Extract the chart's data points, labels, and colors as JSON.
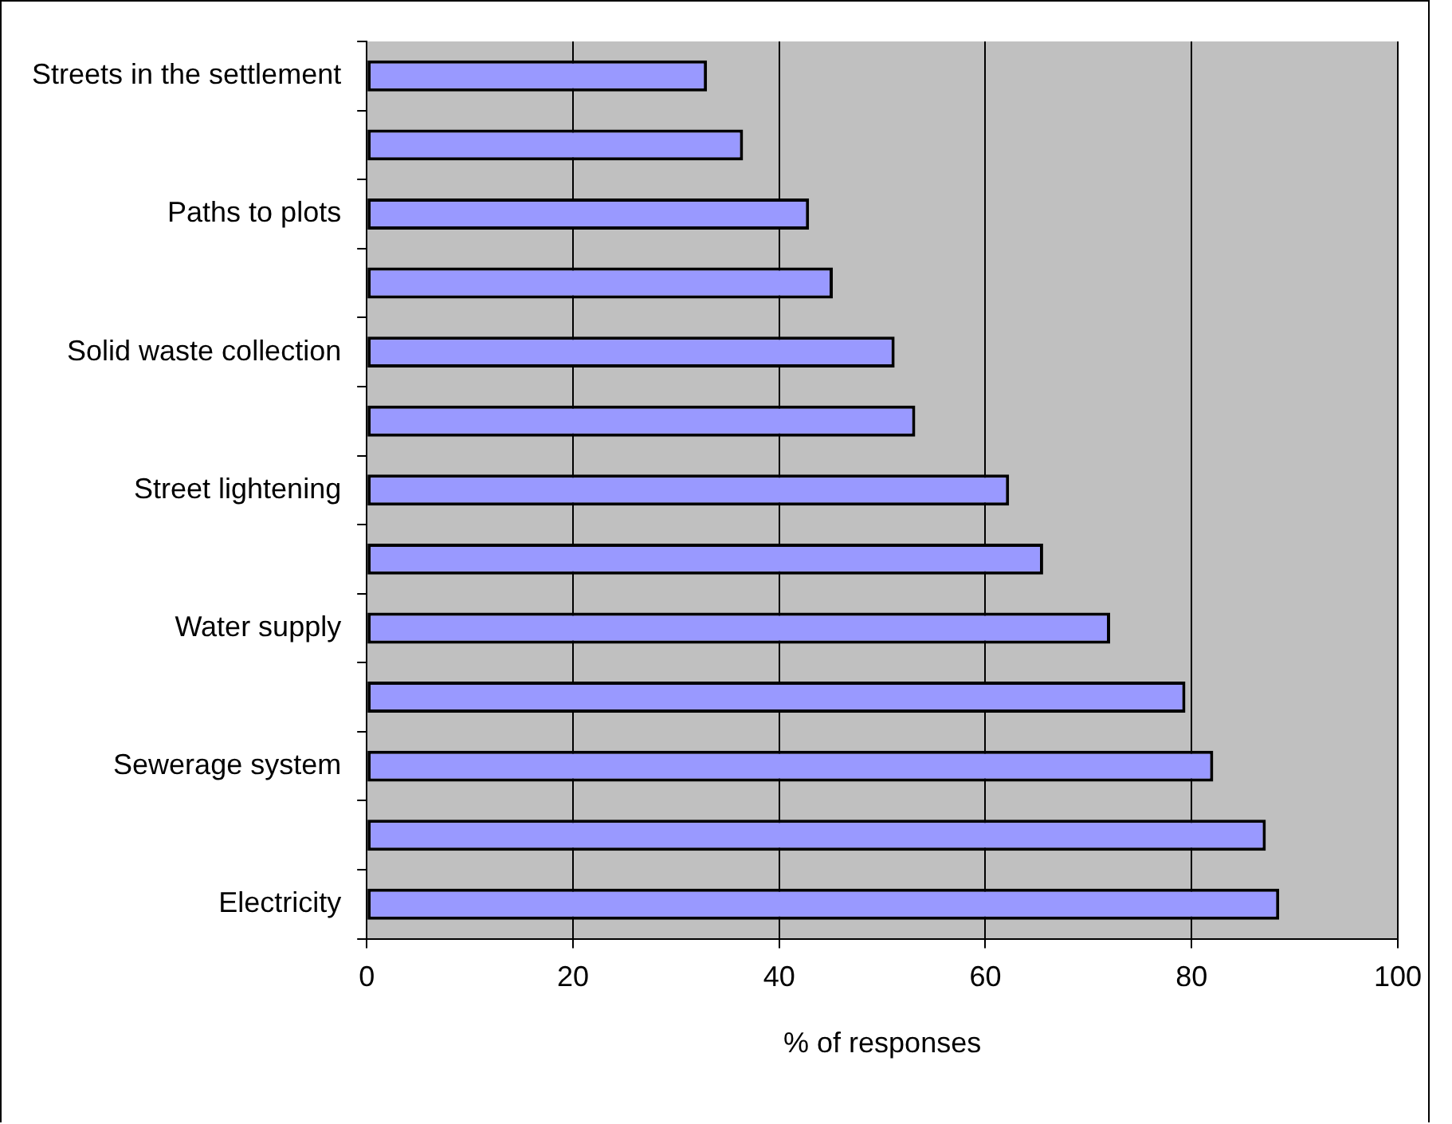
{
  "chart_data": {
    "type": "bar",
    "orientation": "horizontal",
    "xlabel": "% of responses",
    "categories": [
      "Streets in the settlement",
      null,
      "Paths to plots",
      null,
      "Solid waste collection",
      null,
      "Street lightening",
      null,
      "Water supply",
      null,
      "Sewerage system",
      null,
      "Electricity"
    ],
    "values": [
      33.0,
      36.5,
      42.9,
      45.2,
      51.2,
      53.2,
      62.3,
      65.6,
      72.1,
      79.4,
      82.1,
      87.2,
      88.5
    ],
    "color": "#9999ff",
    "xlim": [
      0,
      100
    ],
    "xticks": [
      0,
      20,
      40,
      60,
      80,
      100
    ],
    "grid": "x",
    "legend": false
  }
}
